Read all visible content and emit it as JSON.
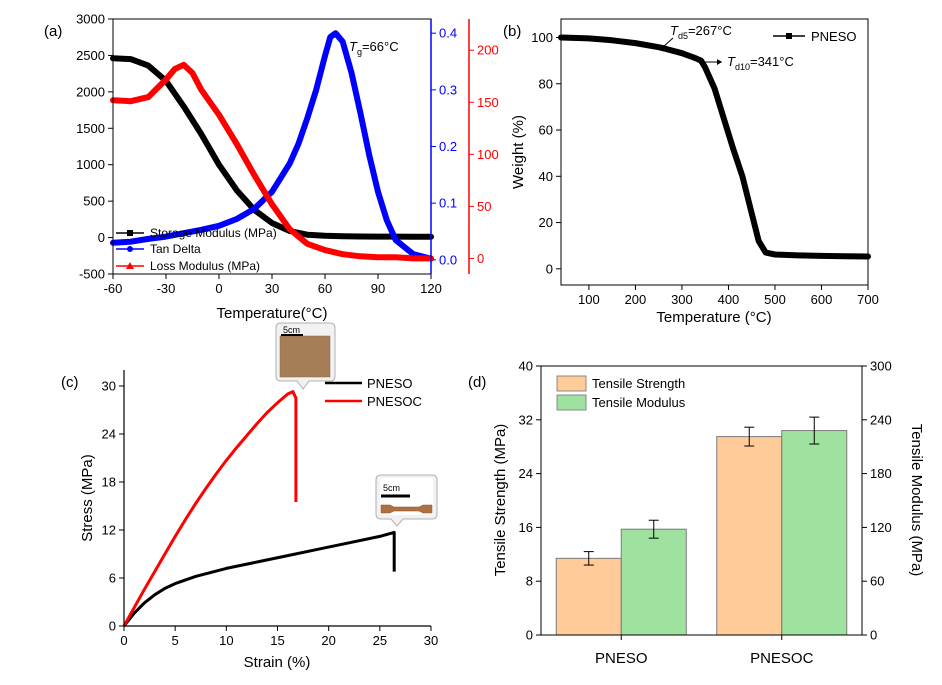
{
  "chart_data": [
    {
      "panel": "(a)",
      "type": "line",
      "xlabel": "Temperature(°C)",
      "xlim": [
        -60,
        120
      ],
      "xticks": [
        "-60",
        "-30",
        "0",
        "30",
        "60",
        "90",
        "120"
      ],
      "ylim_left": [
        -500,
        3000
      ],
      "yticks_left": [
        "-500",
        "0",
        "500",
        "1000",
        "1500",
        "2000",
        "2500",
        "3000"
      ],
      "ylim_tan": [
        -0.025,
        0.425
      ],
      "yticks_tan": [
        "0.0",
        "0.1",
        "0.2",
        "0.3",
        "0.4"
      ],
      "ylim_loss": [
        -15,
        230
      ],
      "yticks_loss": [
        "0",
        "50",
        "100",
        "150",
        "200"
      ],
      "annotation": {
        "prefix": "T",
        "sub": "g",
        "suffix": "=66°C"
      },
      "colors": {
        "storage": "#000000",
        "tan": "#0000ff",
        "loss": "#ff0000"
      },
      "series": [
        {
          "name": "Storage Modulus (MPa)",
          "axis": "left",
          "x": [
            -60,
            -50,
            -40,
            -30,
            -20,
            -10,
            0,
            10,
            20,
            30,
            40,
            50,
            60,
            70,
            80,
            90,
            100,
            110,
            120
          ],
          "y": [
            2460,
            2450,
            2360,
            2150,
            1800,
            1420,
            1000,
            650,
            380,
            200,
            90,
            40,
            25,
            18,
            15,
            14,
            13,
            12,
            12
          ]
        },
        {
          "name": "Tan Delta",
          "axis": "tan",
          "x": [
            -60,
            -50,
            -40,
            -30,
            -20,
            -10,
            0,
            10,
            20,
            30,
            40,
            45,
            50,
            55,
            60,
            63,
            66,
            70,
            75,
            80,
            85,
            90,
            95,
            100,
            110,
            120
          ],
          "y": [
            0.03,
            0.032,
            0.037,
            0.041,
            0.047,
            0.053,
            0.06,
            0.072,
            0.09,
            0.12,
            0.17,
            0.205,
            0.25,
            0.3,
            0.36,
            0.393,
            0.4,
            0.385,
            0.33,
            0.26,
            0.185,
            0.12,
            0.07,
            0.035,
            0.01,
            0.002
          ]
        },
        {
          "name": "Loss Modulus (MPa)",
          "axis": "loss",
          "x": [
            -60,
            -50,
            -40,
            -30,
            -25,
            -20,
            -15,
            -10,
            0,
            10,
            20,
            30,
            40,
            50,
            60,
            70,
            80,
            90,
            100,
            110,
            120
          ],
          "y": [
            152,
            151,
            155,
            172,
            182,
            186,
            178,
            162,
            138,
            110,
            80,
            52,
            28,
            14,
            8,
            4,
            2,
            1,
            1,
            0,
            0
          ]
        }
      ]
    },
    {
      "panel": "(b)",
      "type": "line",
      "xlabel": "Temperature (°C)",
      "ylabel": "Weight (%)",
      "xlim": [
        40,
        700
      ],
      "xticks": [
        "100",
        "200",
        "300",
        "400",
        "500",
        "600",
        "700"
      ],
      "ylim": [
        -7,
        108
      ],
      "yticks": [
        "0",
        "20",
        "40",
        "60",
        "80",
        "100"
      ],
      "annotations": [
        {
          "prefix": "T",
          "sub": "d5",
          "suffix": "=267°C",
          "x": 267,
          "y": 95
        },
        {
          "prefix": "T",
          "sub": "d10",
          "suffix": "=341°C",
          "x": 341,
          "y": 90
        }
      ],
      "series": [
        {
          "name": "PNESO",
          "x": [
            40,
            100,
            150,
            200,
            250,
            267,
            300,
            330,
            341,
            350,
            370,
            390,
            410,
            430,
            450,
            465,
            480,
            500,
            550,
            600,
            650,
            700
          ],
          "y": [
            100,
            99.6,
            98.8,
            97.6,
            95.8,
            95,
            93.2,
            91,
            90,
            87,
            78,
            65,
            52,
            40,
            24,
            12,
            7,
            6.2,
            5.8,
            5.6,
            5.4,
            5.3
          ]
        }
      ]
    },
    {
      "panel": "(c)",
      "type": "line",
      "xlabel": "Strain (%)",
      "ylabel": "Stress (MPa)",
      "xlim": [
        0,
        30
      ],
      "xticks": [
        "0",
        "5",
        "10",
        "15",
        "20",
        "25",
        "30"
      ],
      "ylim": [
        0,
        32
      ],
      "yticks": [
        "0",
        "6",
        "12",
        "18",
        "24",
        "30"
      ],
      "inset_scale": "5cm",
      "series": [
        {
          "name": "PNESO",
          "color": "#000000",
          "x": [
            0,
            1,
            2,
            3,
            4,
            5,
            7,
            10,
            13,
            16,
            19,
            22,
            25,
            26.4,
            26.4,
            26.4
          ],
          "y": [
            0,
            1.6,
            2.9,
            3.9,
            4.7,
            5.3,
            6.2,
            7.2,
            8.0,
            8.8,
            9.6,
            10.4,
            11.2,
            11.7,
            9.0,
            6.8
          ]
        },
        {
          "name": "PNESOC",
          "color": "#ff0000",
          "x": [
            0,
            1,
            2,
            3,
            4,
            5,
            6,
            7,
            8,
            9,
            10,
            11,
            12,
            13,
            14,
            15,
            16,
            16.5,
            16.8,
            16.8,
            16.8
          ],
          "y": [
            0,
            2.3,
            4.6,
            6.8,
            9.0,
            11.2,
            13.3,
            15.3,
            17.2,
            19.0,
            20.7,
            22.3,
            23.8,
            25.3,
            26.7,
            27.9,
            29.0,
            29.3,
            28.5,
            22.0,
            15.5
          ]
        }
      ]
    },
    {
      "panel": "(d)",
      "type": "bar",
      "categories": [
        "PNESO",
        "PNESOC"
      ],
      "ylabel_left": "Tensile Strength (MPa)",
      "ylabel_right": "Tensile Modulus (MPa)",
      "ylim_left": [
        0,
        40
      ],
      "yticks_left": [
        "0",
        "8",
        "16",
        "24",
        "32",
        "40"
      ],
      "ylim_right": [
        0,
        300
      ],
      "yticks_right": [
        "0",
        "60",
        "120",
        "180",
        "240",
        "300"
      ],
      "series": [
        {
          "name": "Tensile Strength",
          "axis": "left",
          "color": "#ffcc99",
          "values": [
            11.4,
            29.5
          ],
          "errors": [
            1.0,
            1.4
          ]
        },
        {
          "name": "Tensile Modulus",
          "axis": "right",
          "color": "#9fe29f",
          "values": [
            118,
            228
          ],
          "errors": [
            10,
            15
          ]
        }
      ]
    }
  ]
}
